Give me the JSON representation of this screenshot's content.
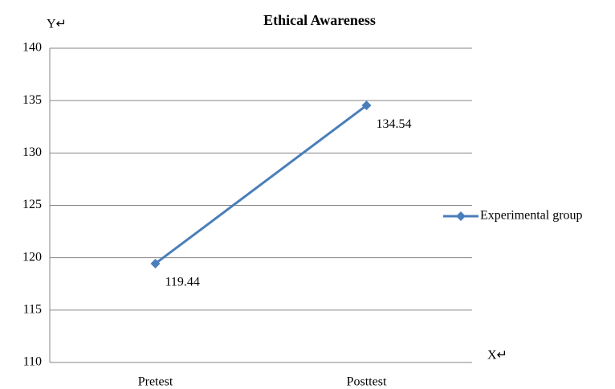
{
  "chart_data": {
    "type": "line",
    "title": "Ethical Awareness",
    "y_label": "Y↵",
    "x_label": "X↵",
    "categories": [
      "Pretest",
      "Posttest"
    ],
    "series": [
      {
        "name": "Experimental group",
        "color": "#4a7ebb",
        "values": [
          119.44,
          134.54
        ]
      }
    ],
    "ylim": [
      110,
      140
    ],
    "yticks": [
      110,
      115,
      120,
      125,
      130,
      135,
      140
    ],
    "grid": true,
    "legend": "right"
  }
}
